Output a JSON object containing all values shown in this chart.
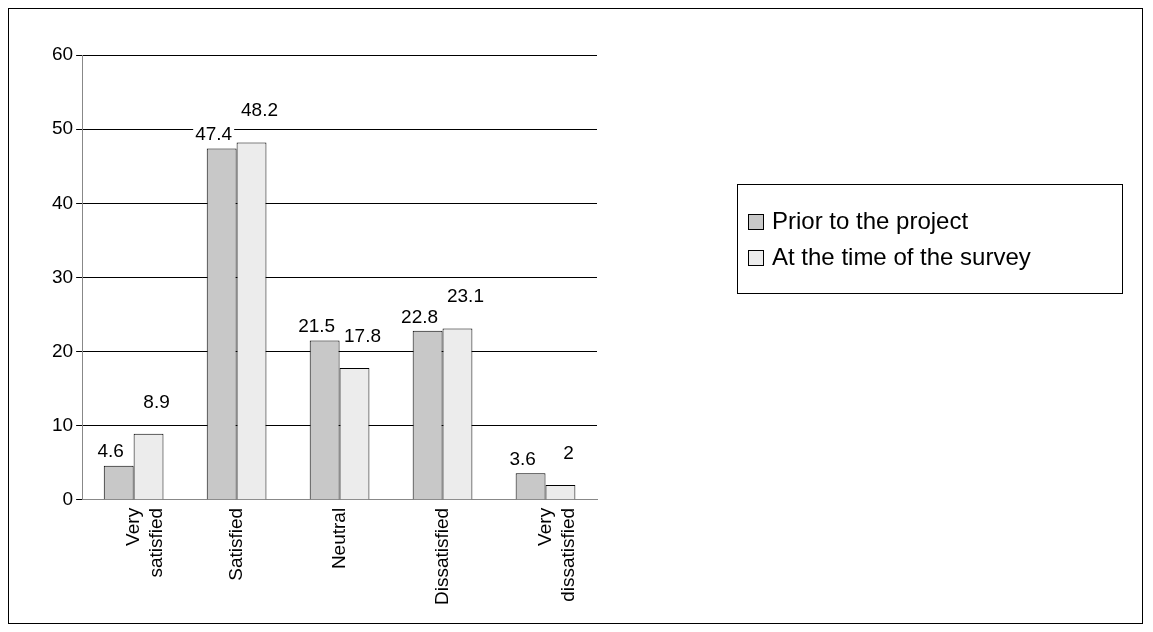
{
  "chart_data": {
    "type": "bar",
    "categories": [
      "Very satisfied",
      "Satisfied",
      "Neutral",
      "Dissatisfied",
      "Very dissatisfied"
    ],
    "series": [
      {
        "name": "Prior to the project",
        "color": "#c8c8c8",
        "values": [
          4.6,
          47.4,
          21.5,
          22.8,
          3.6
        ]
      },
      {
        "name": "At the time of the survey",
        "color": "#ececec",
        "values": [
          8.9,
          48.2,
          17.8,
          23.1,
          2
        ]
      }
    ],
    "ylim": [
      0,
      60
    ],
    "yticks": [
      0,
      10,
      20,
      30,
      40,
      50,
      60
    ],
    "grid": "y",
    "legend": "right",
    "data_labels": true
  }
}
